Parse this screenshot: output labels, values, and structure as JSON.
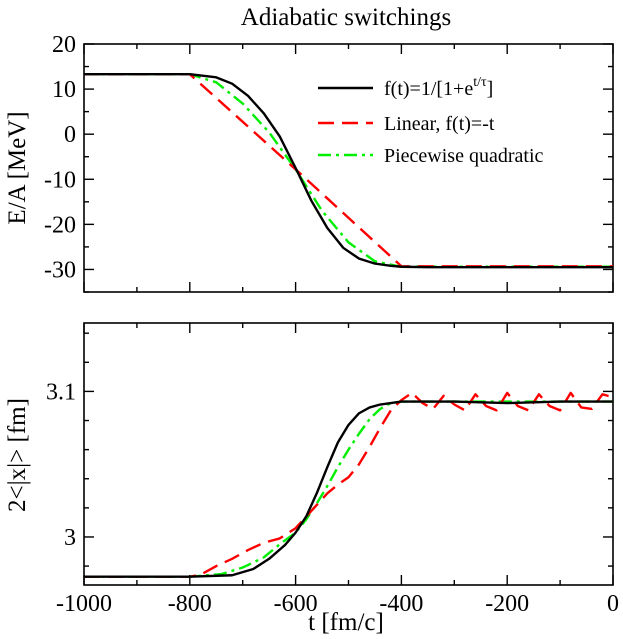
{
  "chart_data": [
    {
      "type": "line",
      "title": "Adiabatic switchings",
      "xlabel": "",
      "ylabel": "E/A [MeV]",
      "xlim": [
        -1000,
        0
      ],
      "ylim": [
        -35,
        20
      ],
      "yticks": [
        "20",
        "10",
        "0",
        "-10",
        "-20",
        "-30"
      ],
      "ytick_values": [
        20,
        10,
        0,
        -10,
        -20,
        -30
      ],
      "legend": {
        "position": "top-right",
        "entries": [
          {
            "name": "f(t)=1/[1+e",
            "sup": "t/τ",
            "suffix": "]"
          },
          {
            "name": "Linear, f(t)=-t"
          },
          {
            "name": "Piecewise quadratic"
          }
        ]
      },
      "series": [
        {
          "name": "f(t)=1/[1+e^(t/τ)]",
          "color": "#000000",
          "dash": "solid",
          "x": [
            -1000,
            -800,
            -750,
            -720,
            -690,
            -660,
            -630,
            -600,
            -570,
            -540,
            -510,
            -480,
            -450,
            -420,
            -400,
            -350,
            -200,
            0
          ],
          "y": [
            13.3,
            13.3,
            12.6,
            11.2,
            8.5,
            4.6,
            -0.5,
            -7.5,
            -14.8,
            -20.8,
            -25.2,
            -27.6,
            -28.7,
            -29.2,
            -29.4,
            -29.5,
            -29.5,
            -29.5
          ]
        },
        {
          "name": "Linear, f(t)=-t",
          "color": "#ff0000",
          "dash": "dashed",
          "x": [
            -1000,
            -800,
            -600,
            -400,
            -200,
            0
          ],
          "y": [
            13.3,
            13.3,
            -7.8,
            -29.3,
            -29.3,
            -29.3
          ]
        },
        {
          "name": "Piecewise quadratic",
          "color": "#00ee00",
          "dash": "dashdot",
          "x": [
            -1000,
            -800,
            -750,
            -700,
            -650,
            -600,
            -550,
            -500,
            -450,
            -400,
            -200,
            0
          ],
          "y": [
            13.3,
            13.3,
            11.5,
            6.8,
            0.4,
            -7.8,
            -17.0,
            -24.0,
            -28.2,
            -29.4,
            -29.4,
            -29.4
          ]
        }
      ]
    },
    {
      "type": "line",
      "title": "",
      "xlabel": "t [fm/c]",
      "ylabel": "2<|x|> [fm]",
      "xlim": [
        -1000,
        0
      ],
      "ylim": [
        2.967,
        3.147
      ],
      "yticks": [
        "3.1",
        "3"
      ],
      "ytick_values": [
        3.1,
        3.0
      ],
      "xticks": [
        "-1000",
        "-800",
        "-600",
        "-400",
        "-200",
        "0"
      ],
      "xtick_values": [
        -1000,
        -800,
        -600,
        -400,
        -200,
        0
      ],
      "series": [
        {
          "name": "f(t)=1/[1+e^(t/τ)]",
          "color": "#000000",
          "dash": "solid",
          "x": [
            -1000,
            -800,
            -720,
            -680,
            -650,
            -620,
            -600,
            -580,
            -560,
            -540,
            -520,
            -500,
            -480,
            -460,
            -440,
            -420,
            -400,
            -300,
            -200,
            -100,
            0
          ],
          "y": [
            2.9727,
            2.9727,
            2.9737,
            2.978,
            2.985,
            2.9945,
            3.003,
            3.014,
            3.03,
            3.048,
            3.065,
            3.077,
            3.085,
            3.089,
            3.091,
            3.092,
            3.093,
            3.093,
            3.092,
            3.093,
            3.093
          ]
        },
        {
          "name": "Linear, f(t)=-t",
          "color": "#ff0000",
          "dash": "dashed",
          "x": [
            -1000,
            -800,
            -780,
            -750,
            -720,
            -690,
            -660,
            -630,
            -600,
            -580,
            -560,
            -540,
            -520,
            -500,
            -480,
            -460,
            -440,
            -420,
            -400,
            -380,
            -360,
            -340,
            -320,
            -300,
            -280,
            -260,
            -240,
            -220,
            -200,
            -180,
            -160,
            -140,
            -120,
            -100,
            -80,
            -60,
            -40,
            -20,
            0
          ],
          "y": [
            2.9727,
            2.9727,
            2.974,
            2.98,
            2.985,
            2.991,
            2.996,
            2.999,
            3.006,
            3.014,
            3.022,
            3.03,
            3.036,
            3.041,
            3.05,
            3.062,
            3.075,
            3.087,
            3.094,
            3.099,
            3.092,
            3.088,
            3.097,
            3.091,
            3.087,
            3.098,
            3.09,
            3.087,
            3.099,
            3.09,
            3.087,
            3.098,
            3.09,
            3.087,
            3.099,
            3.089,
            3.088,
            3.098,
            3.096
          ]
        },
        {
          "name": "Piecewise quadratic",
          "color": "#00ee00",
          "dash": "dashdot",
          "x": [
            -1000,
            -800,
            -740,
            -700,
            -660,
            -630,
            -600,
            -580,
            -560,
            -540,
            -520,
            -500,
            -480,
            -460,
            -440,
            -420,
            -400,
            -300,
            -200,
            -100,
            0
          ],
          "y": [
            2.9727,
            2.9727,
            2.9745,
            2.979,
            2.986,
            2.995,
            3.003,
            3.012,
            3.023,
            3.035,
            3.048,
            3.06,
            3.071,
            3.081,
            3.088,
            3.092,
            3.093,
            3.093,
            3.093,
            3.093,
            3.093
          ]
        }
      ]
    }
  ]
}
